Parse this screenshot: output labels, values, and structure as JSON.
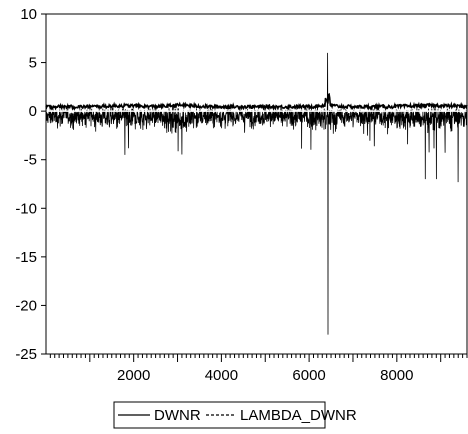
{
  "chart_data": {
    "type": "line",
    "title": "",
    "xlabel": "",
    "ylabel": "",
    "xlim": [
      1,
      9600
    ],
    "ylim": [
      -25,
      10
    ],
    "x_ticks": [
      2000,
      4000,
      6000,
      8000
    ],
    "y_ticks": [
      10,
      5,
      0,
      -5,
      -10,
      -15,
      -20,
      -25
    ],
    "x_tick_labels": [
      "2000",
      "4000",
      "6000",
      "8000"
    ],
    "y_tick_labels": [
      "10",
      "5",
      "0",
      "-5",
      "-10",
      "-15",
      "-20",
      "-25"
    ],
    "grid": false,
    "legend_position": "bottom-center",
    "series": [
      {
        "name": "DWNR",
        "style": "solid",
        "color": "#000000",
        "min": -23,
        "max": 6,
        "notable_points": [
          {
            "x": 6420,
            "y": 6
          },
          {
            "x": 6430,
            "y": -23
          },
          {
            "x": 1800,
            "y": -4.5
          },
          {
            "x": 8650,
            "y": -7
          },
          {
            "x": 8900,
            "y": -7
          },
          {
            "x": 9400,
            "y": -7.3
          }
        ]
      },
      {
        "name": "LAMBDA_DWNR",
        "style": "dashed",
        "color": "#000000",
        "approx_level": 0.5
      }
    ]
  }
}
